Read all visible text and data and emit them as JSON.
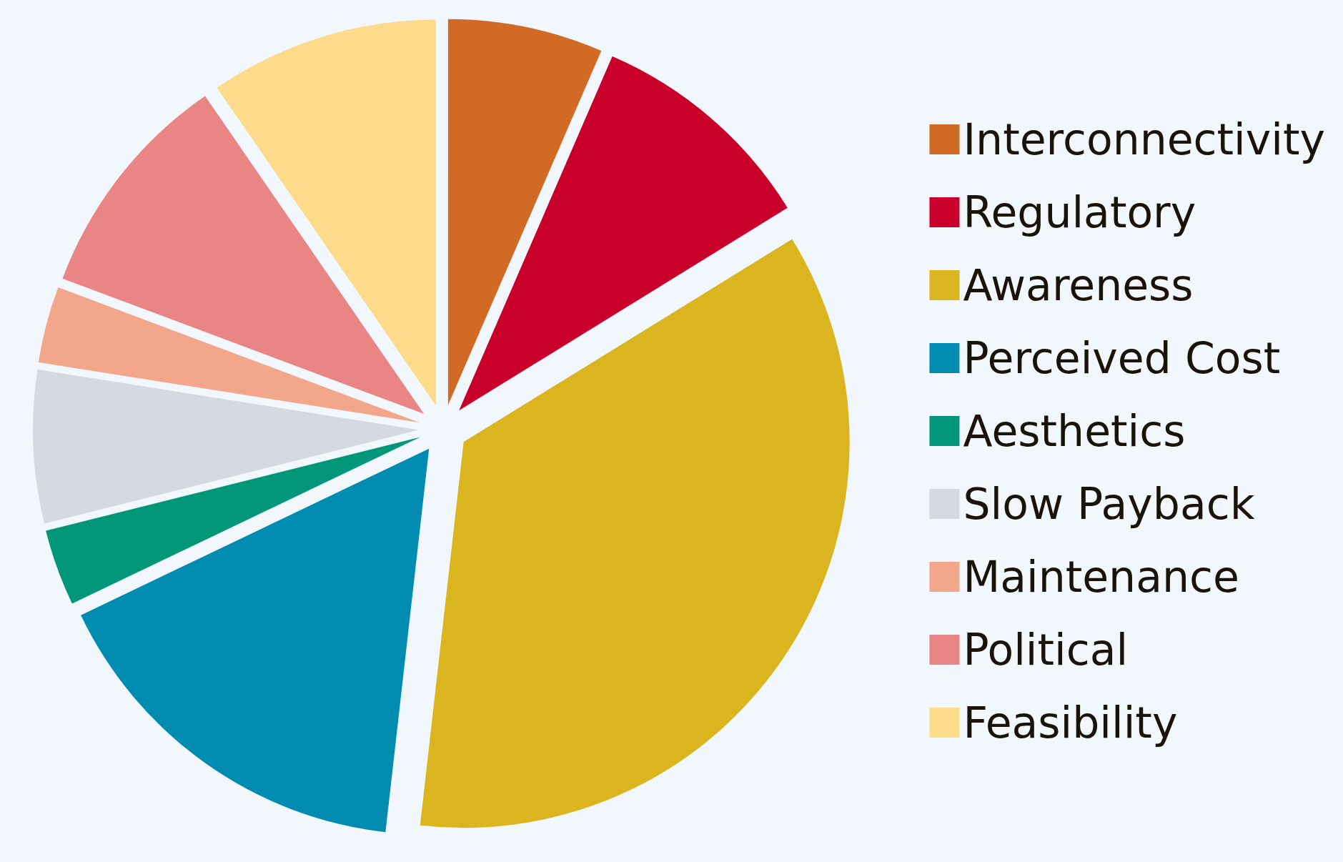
{
  "chart_data": {
    "type": "pie",
    "categories": [
      "Interconnectivity",
      "Regulatory",
      "Awareness",
      "Perceived Cost",
      "Aesthetics",
      "Slow Payback",
      "Maintenance",
      "Political",
      "Feasibility"
    ],
    "values": [
      6.5,
      9.7,
      35.6,
      16.1,
      3.2,
      6.4,
      3.2,
      9.7,
      9.6
    ],
    "colors": [
      "#d06a25",
      "#c8002a",
      "#dbb520",
      "#008cb0",
      "#03977a",
      "#d6d9e0",
      "#f2a68a",
      "#ea8586",
      "#fcdc8a"
    ],
    "legend": "right"
  }
}
